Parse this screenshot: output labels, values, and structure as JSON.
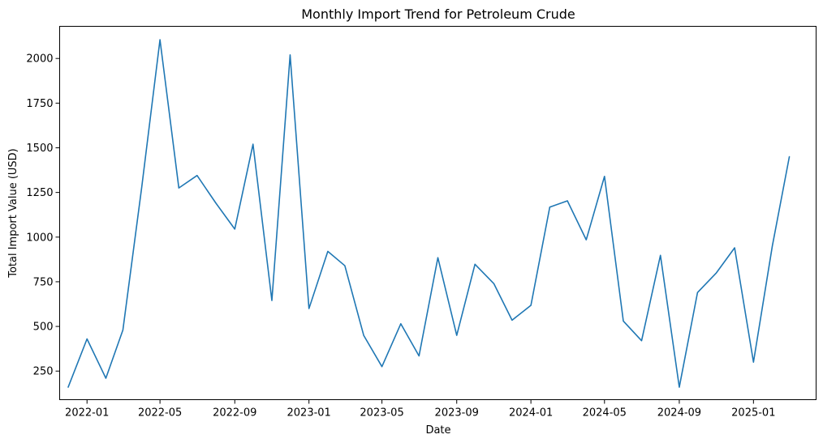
{
  "chart_data": {
    "type": "line",
    "title": "Monthly Import Trend for Petroleum Crude",
    "xlabel": "Date",
    "ylabel": "Total Import Value (USD)",
    "x_ticks": [
      "2022-01",
      "2022-05",
      "2022-09",
      "2023-01",
      "2023-05",
      "2023-09",
      "2024-01",
      "2024-05",
      "2024-09",
      "2025-01"
    ],
    "y_ticks": [
      250,
      500,
      750,
      1000,
      1250,
      1500,
      1750,
      2000
    ],
    "ylim": [
      90,
      2180
    ],
    "xlim": [
      "2021-11-17",
      "2025-04-14"
    ],
    "grid": false,
    "legend": "none",
    "color": "#1f77b4",
    "series": [
      {
        "x": [
          "2021-12-01",
          "2022-01-01",
          "2022-02-01",
          "2022-03-01",
          "2022-04-01",
          "2022-05-01",
          "2022-06-01",
          "2022-07-01",
          "2022-08-01",
          "2022-09-01",
          "2022-10-01",
          "2022-11-01",
          "2022-12-01",
          "2023-01-01",
          "2023-02-01",
          "2023-03-01",
          "2023-04-01",
          "2023-05-01",
          "2023-06-01",
          "2023-07-01",
          "2023-08-01",
          "2023-09-01",
          "2023-10-01",
          "2023-11-01",
          "2023-12-01",
          "2024-01-01",
          "2024-02-01",
          "2024-03-01",
          "2024-04-01",
          "2024-05-01",
          "2024-06-01",
          "2024-07-01",
          "2024-08-01",
          "2024-09-01",
          "2024-10-01",
          "2024-11-01",
          "2024-12-01",
          "2025-01-01",
          "2025-02-01",
          "2025-03-01"
        ],
        "values": [
          160,
          430,
          210,
          480,
          1280,
          2105,
          1275,
          1345,
          1190,
          1045,
          1520,
          645,
          2020,
          600,
          920,
          840,
          450,
          275,
          515,
          335,
          885,
          450,
          848,
          740,
          535,
          618,
          1168,
          1203,
          985,
          1340,
          530,
          420,
          898,
          160,
          690,
          800,
          940,
          300,
          950,
          1450
        ]
      }
    ]
  }
}
